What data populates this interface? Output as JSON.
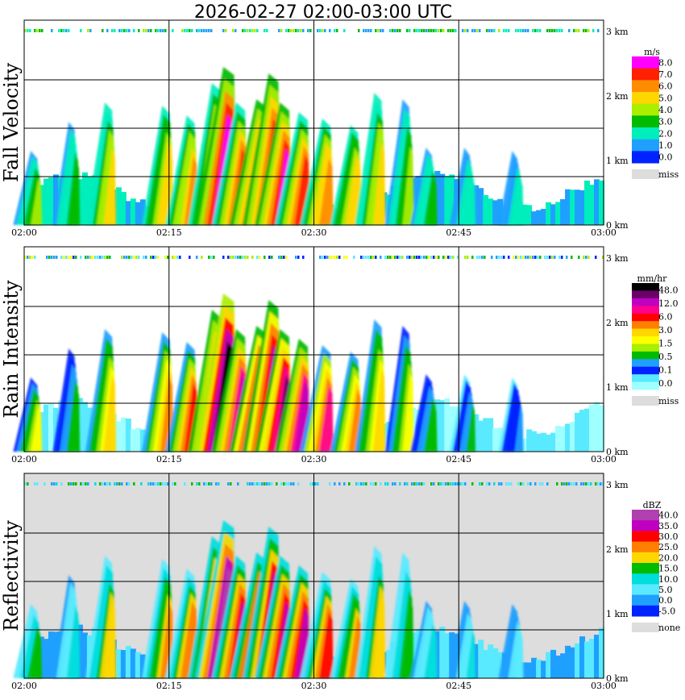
{
  "title": "2026-02-27  02:00-03:00 UTC",
  "chart_data": {
    "type": "heatmap",
    "x_ticks": [
      "02:00",
      "02:15",
      "02:30",
      "02:45",
      "03:00"
    ],
    "y_ticks": [
      "0 km",
      "1 km",
      "2 km",
      "3 km"
    ],
    "xlim": [
      "02:00",
      "03:00"
    ],
    "ylim_km": [
      0,
      3.2
    ],
    "grid": true,
    "panels": [
      {
        "ylabel": "Fall Velocity",
        "unit": "m/s",
        "background": "#ffffff",
        "legend_labels": [
          "8.0",
          "7.0",
          "6.0",
          "5.0",
          "4.0",
          "3.0",
          "2.0",
          "1.0",
          "0.0"
        ],
        "legend_colors": [
          "#ff00ff",
          "#ff2000",
          "#ff8c00",
          "#ffd700",
          "#aaee00",
          "#00bb00",
          "#00eebb",
          "#1fa0ff",
          "#0022ff"
        ],
        "miss_label": "miss",
        "miss_color": "#dddddd"
      },
      {
        "ylabel": "Rain Intensity",
        "unit": "mm/hr",
        "background": "#ffffff",
        "legend_labels": [
          "48.0",
          "12.0",
          "6.0",
          "3.0",
          "1.5",
          "0.5",
          "0.1",
          "0.0"
        ],
        "legend_colors": [
          "#000000",
          "#6a006a",
          "#c000c0",
          "#ff0090",
          "#ff0000",
          "#ff8000",
          "#ffd700",
          "#ffff00",
          "#aaee00",
          "#00bb00",
          "#1fa0ff",
          "#0022ff",
          "#5aeaff",
          "#a0ffff"
        ],
        "miss_label": "miss",
        "miss_color": "#dddddd"
      },
      {
        "ylabel": "Reflectivity",
        "unit": "dBZ",
        "background": "#dddddd",
        "legend_labels": [
          "40.0",
          "35.0",
          "30.0",
          "25.0",
          "20.0",
          "15.0",
          "10.0",
          "5.0",
          "0.0",
          "-5.0"
        ],
        "legend_colors": [
          "#b040b0",
          "#c000c0",
          "#ff0000",
          "#ff8000",
          "#ffd700",
          "#00bb00",
          "#00dddd",
          "#5aeaff",
          "#1fa0ff",
          "#0022ff"
        ],
        "miss_label": "none",
        "miss_color": "#dddddd"
      }
    ],
    "streaks": [
      {
        "t": 0.0,
        "top": 1.15,
        "i": 0.35
      },
      {
        "t": 4.0,
        "top": 1.6,
        "i": 0.25
      },
      {
        "t": 7.6,
        "top": 1.9,
        "i": 0.45
      },
      {
        "t": 13.5,
        "top": 1.85,
        "i": 0.5
      },
      {
        "t": 16.0,
        "top": 1.7,
        "i": 0.55
      },
      {
        "t": 18.5,
        "top": 2.2,
        "i": 0.7
      },
      {
        "t": 19.5,
        "top": 2.45,
        "i": 0.95
      },
      {
        "t": 21.0,
        "top": 1.9,
        "i": 0.7
      },
      {
        "t": 23.0,
        "top": 1.95,
        "i": 0.85
      },
      {
        "t": 24.3,
        "top": 2.35,
        "i": 0.8
      },
      {
        "t": 25.5,
        "top": 1.9,
        "i": 0.75
      },
      {
        "t": 27.5,
        "top": 1.75,
        "i": 0.7
      },
      {
        "t": 30.0,
        "top": 1.65,
        "i": 0.6
      },
      {
        "t": 33.0,
        "top": 1.55,
        "i": 0.5
      },
      {
        "t": 35.5,
        "top": 2.05,
        "i": 0.45
      },
      {
        "t": 38.5,
        "top": 1.95,
        "i": 0.35
      },
      {
        "t": 41.0,
        "top": 1.2,
        "i": 0.25
      },
      {
        "t": 45.0,
        "top": 1.2,
        "i": 0.2
      },
      {
        "t": 50.0,
        "top": 1.15,
        "i": 0.15
      }
    ]
  }
}
